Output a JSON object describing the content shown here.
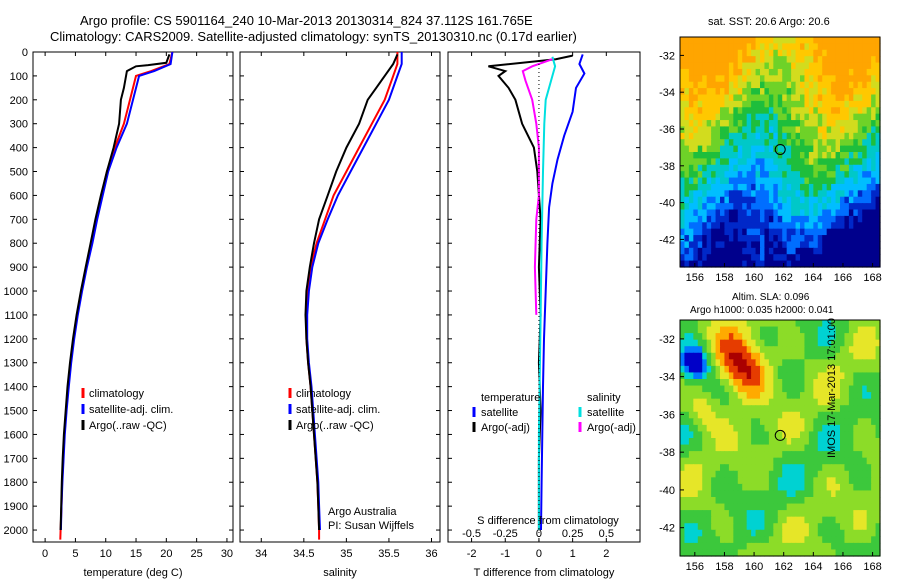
{
  "header": {
    "line1": "Argo profile: CS 5901164_240 10-Mar-2013 20130314_824 37.112S 161.765E",
    "line2": "Climatology: CARS2009. Satellite-adjusted climatology: synTS_20130310.nc (0.17d earlier)"
  },
  "side_stamp": "IMOS 17-Mar-2013 17:01:00",
  "maps": {
    "sst": {
      "title": "sat. SST: 20.6  Argo: 20.6"
    },
    "sla": {
      "title_line1": "Altim. SLA: 0.096",
      "title_line2": "Argo h1000: 0.035  h2000: 0.041"
    },
    "x_ticks": [
      "156",
      "158",
      "160",
      "162",
      "164",
      "166",
      "168"
    ],
    "y_ticks": [
      "-32",
      "-34",
      "-36",
      "-38",
      "-40",
      "-42"
    ]
  },
  "colors": {
    "climatology": "#ff0000",
    "satellite_clim": "#0000ff",
    "argo": "#000000",
    "sal_satellite": "#00e0e0",
    "sal_argo": "#ff00ff"
  },
  "chart_data": [
    {
      "type": "line",
      "xlabel": "temperature (deg C)",
      "ylabel": "",
      "xlim": [
        -2,
        31
      ],
      "ylim": [
        2050,
        0
      ],
      "x_ticks": [
        "0",
        "5",
        "10",
        "15",
        "20",
        "25",
        "30"
      ],
      "y_ticks": [
        "0",
        "100",
        "200",
        "300",
        "400",
        "500",
        "600",
        "700",
        "800",
        "900",
        "1000",
        "1100",
        "1200",
        "1300",
        "1400",
        "1500",
        "1600",
        "1700",
        "1800",
        "1900",
        "2000"
      ],
      "legend": [
        "climatology",
        "satellite-adj. clim.",
        "Argo(..raw -QC)"
      ],
      "series": [
        {
          "name": "climatology",
          "points": [
            [
              21,
              0
            ],
            [
              20.5,
              50
            ],
            [
              17.5,
              80
            ],
            [
              15,
              100
            ],
            [
              14,
              200
            ],
            [
              13,
              300
            ],
            [
              11.5,
              400
            ],
            [
              10.2,
              500
            ],
            [
              9.3,
              600
            ],
            [
              8.4,
              700
            ],
            [
              7.6,
              800
            ],
            [
              6.8,
              900
            ],
            [
              6,
              1000
            ],
            [
              5.3,
              1100
            ],
            [
              4.7,
              1200
            ],
            [
              4.2,
              1300
            ],
            [
              3.8,
              1400
            ],
            [
              3.5,
              1500
            ],
            [
              3.2,
              1600
            ],
            [
              3,
              1700
            ],
            [
              2.8,
              1800
            ],
            [
              2.7,
              1900
            ],
            [
              2.55,
              2000
            ],
            [
              2.5,
              2040
            ]
          ]
        },
        {
          "name": "satellite-adj. clim.",
          "points": [
            [
              21,
              0
            ],
            [
              20.7,
              50
            ],
            [
              18,
              80
            ],
            [
              15.5,
              100
            ],
            [
              14.5,
              200
            ],
            [
              13.5,
              300
            ],
            [
              11.8,
              400
            ],
            [
              10.4,
              500
            ],
            [
              9.5,
              600
            ],
            [
              8.6,
              700
            ],
            [
              7.8,
              800
            ],
            [
              6.9,
              900
            ],
            [
              6.1,
              1000
            ],
            [
              5.4,
              1100
            ],
            [
              4.8,
              1200
            ],
            [
              4.3,
              1300
            ],
            [
              3.9,
              1400
            ],
            [
              3.55,
              1500
            ],
            [
              3.25,
              1600
            ],
            [
              3.05,
              1700
            ],
            [
              2.85,
              1800
            ],
            [
              2.7,
              1900
            ],
            [
              2.6,
              2000
            ]
          ]
        },
        {
          "name": "Argo(..raw -QC)",
          "points": [
            [
              20.5,
              10
            ],
            [
              20,
              45
            ],
            [
              17,
              55
            ],
            [
              15,
              60
            ],
            [
              13.5,
              80
            ],
            [
              13,
              150
            ],
            [
              12.5,
              200
            ],
            [
              12.2,
              300
            ],
            [
              11.3,
              400
            ],
            [
              10.2,
              500
            ],
            [
              9.2,
              600
            ],
            [
              8.3,
              700
            ],
            [
              7.5,
              800
            ],
            [
              6.7,
              900
            ],
            [
              5.9,
              1000
            ],
            [
              5.2,
              1100
            ],
            [
              4.6,
              1200
            ],
            [
              4.1,
              1300
            ],
            [
              3.7,
              1400
            ],
            [
              3.4,
              1500
            ],
            [
              3.1,
              1600
            ],
            [
              2.9,
              1700
            ],
            [
              2.75,
              1800
            ],
            [
              2.65,
              1900
            ],
            [
              2.55,
              2000
            ]
          ]
        }
      ]
    },
    {
      "type": "line",
      "xlabel": "salinity",
      "ylabel": "",
      "xlim": [
        33.75,
        36.1
      ],
      "ylim": [
        2050,
        0
      ],
      "x_ticks": [
        "34",
        "34.5",
        "35",
        "35.5",
        "36"
      ],
      "legend": [
        "climatology",
        "satellite-adj. clim.",
        "Argo(..raw -QC)"
      ],
      "annotation": [
        "Argo Australia",
        "PI: Susan Wijffels"
      ],
      "series": [
        {
          "name": "climatology",
          "points": [
            [
              35.6,
              0
            ],
            [
              35.6,
              50
            ],
            [
              35.55,
              100
            ],
            [
              35.45,
              200
            ],
            [
              35.3,
              300
            ],
            [
              35.15,
              400
            ],
            [
              35,
              500
            ],
            [
              34.85,
              600
            ],
            [
              34.75,
              700
            ],
            [
              34.65,
              800
            ],
            [
              34.58,
              900
            ],
            [
              34.55,
              1000
            ],
            [
              34.53,
              1100
            ],
            [
              34.53,
              1200
            ],
            [
              34.55,
              1300
            ],
            [
              34.58,
              1400
            ],
            [
              34.6,
              1500
            ],
            [
              34.62,
              1600
            ],
            [
              34.64,
              1700
            ],
            [
              34.66,
              1800
            ],
            [
              34.67,
              1900
            ],
            [
              34.68,
              2000
            ],
            [
              34.68,
              2040
            ]
          ]
        },
        {
          "name": "satellite-adj. clim.",
          "points": [
            [
              35.65,
              0
            ],
            [
              35.65,
              50
            ],
            [
              35.6,
              100
            ],
            [
              35.5,
              200
            ],
            [
              35.35,
              300
            ],
            [
              35.2,
              400
            ],
            [
              35.05,
              500
            ],
            [
              34.9,
              600
            ],
            [
              34.78,
              700
            ],
            [
              34.67,
              800
            ],
            [
              34.6,
              900
            ],
            [
              34.56,
              1000
            ],
            [
              34.54,
              1100
            ],
            [
              34.54,
              1200
            ],
            [
              34.56,
              1300
            ],
            [
              34.59,
              1400
            ],
            [
              34.61,
              1500
            ],
            [
              34.63,
              1600
            ],
            [
              34.65,
              1700
            ],
            [
              34.67,
              1800
            ],
            [
              34.68,
              1900
            ],
            [
              34.69,
              2000
            ]
          ]
        },
        {
          "name": "Argo(..raw -QC)",
          "points": [
            [
              35.6,
              10
            ],
            [
              35.55,
              50
            ],
            [
              35.45,
              100
            ],
            [
              35.35,
              150
            ],
            [
              35.25,
              200
            ],
            [
              35.15,
              300
            ],
            [
              35,
              400
            ],
            [
              34.88,
              500
            ],
            [
              34.78,
              600
            ],
            [
              34.68,
              700
            ],
            [
              34.62,
              800
            ],
            [
              34.57,
              900
            ],
            [
              34.53,
              1000
            ],
            [
              34.52,
              1100
            ],
            [
              34.53,
              1200
            ],
            [
              34.55,
              1300
            ],
            [
              34.58,
              1400
            ],
            [
              34.6,
              1500
            ],
            [
              34.62,
              1600
            ],
            [
              34.64,
              1700
            ],
            [
              34.66,
              1800
            ],
            [
              34.67,
              1900
            ],
            [
              34.68,
              2000
            ]
          ]
        }
      ]
    },
    {
      "type": "line",
      "xlabel": "T difference from climatology",
      "title": "S difference from climatology",
      "ylabel": "",
      "xlim": [
        -2.7,
        3
      ],
      "ylim": [
        2050,
        0
      ],
      "x_ticks": [
        "-2",
        "-1",
        "0",
        "1",
        "2"
      ],
      "top_ticks": [
        "-0.5",
        "-0.25",
        "0",
        "0.25",
        "0.5"
      ],
      "legend_groups": [
        {
          "title": "temperature",
          "entries": [
            "satellite",
            "Argo(-adj)"
          ]
        },
        {
          "title": "salinity",
          "entries": [
            "satellite",
            "Argo(-adj)"
          ]
        }
      ],
      "series": [
        {
          "name": "temperature satellite",
          "points": [
            [
              1.3,
              10
            ],
            [
              1.2,
              50
            ],
            [
              1.35,
              90
            ],
            [
              1.1,
              150
            ],
            [
              1.0,
              250
            ],
            [
              0.75,
              350
            ],
            [
              0.55,
              450
            ],
            [
              0.4,
              550
            ],
            [
              0.3,
              650
            ],
            [
              0.25,
              800
            ],
            [
              0.2,
              1000
            ],
            [
              0.15,
              1200
            ],
            [
              0.12,
              1400
            ],
            [
              0.1,
              1600
            ],
            [
              0.08,
              1800
            ],
            [
              0.06,
              2000
            ]
          ]
        },
        {
          "name": "temperature Argo(-adj)",
          "points": [
            [
              1.0,
              15
            ],
            [
              0.5,
              30
            ],
            [
              -1.5,
              60
            ],
            [
              -1.0,
              80
            ],
            [
              -1.2,
              100
            ],
            [
              -0.9,
              150
            ],
            [
              -0.7,
              200
            ],
            [
              -0.5,
              300
            ],
            [
              -0.15,
              400
            ],
            [
              -0.05,
              500
            ],
            [
              0.05,
              700
            ],
            [
              0.0,
              900
            ],
            [
              0.05,
              1100
            ],
            [
              0.0,
              1300
            ],
            [
              0.05,
              1500
            ],
            [
              0.0,
              1700
            ],
            [
              0.0,
              1900
            ],
            [
              0.0,
              2000
            ]
          ]
        },
        {
          "name": "salinity satellite",
          "points": [
            [
              0.1,
              20
            ],
            [
              0.12,
              60
            ],
            [
              0.1,
              100
            ],
            [
              0.05,
              200
            ],
            [
              0.04,
              300
            ],
            [
              0.03,
              500
            ],
            [
              0.02,
              800
            ],
            [
              0.01,
              1200
            ],
            [
              0.0,
              1600
            ],
            [
              0.0,
              2000
            ]
          ]
        },
        {
          "name": "salinity Argo(-adj)",
          "points": [
            [
              0.1,
              30
            ],
            [
              -0.05,
              60
            ],
            [
              -0.12,
              80
            ],
            [
              -0.1,
              120
            ],
            [
              -0.05,
              200
            ],
            [
              -0.02,
              300
            ],
            [
              0.0,
              400
            ],
            [
              0.0,
              600
            ],
            [
              -0.02,
              700
            ],
            [
              -0.03,
              900
            ],
            [
              -0.02,
              1100
            ]
          ]
        }
      ]
    }
  ]
}
